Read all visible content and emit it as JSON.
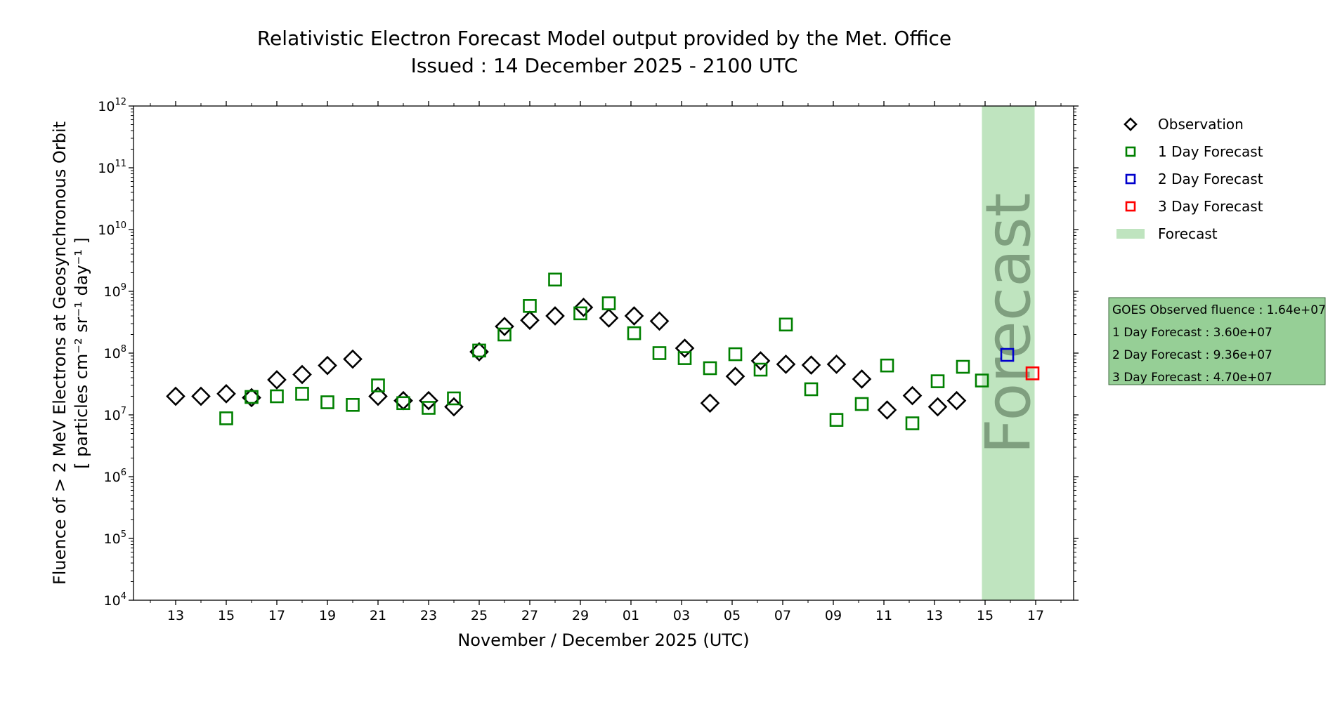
{
  "title": {
    "line1": "Relativistic Electron Forecast Model output provided by the Met. Office",
    "line2": "Issued : 14 December 2025 - 2100 UTC"
  },
  "axes": {
    "xlabel": "November / December 2025 (UTC)",
    "ylabel_line1": "Fluence of > 2 MeV Electrons at Geosynchronous Orbit",
    "ylabel_line2": "[ particles cm⁻² sr⁻¹ day⁻¹ ]",
    "band_label": "Forecast"
  },
  "legend": {
    "observation": "Observation",
    "forecast_1day": "1 Day Forecast",
    "forecast_2day": "2 Day Forecast",
    "forecast_3day": "3 Day Forecast",
    "forecast_band": "Forecast"
  },
  "info_box": {
    "observed": "GOES Observed fluence : 1.64e+07",
    "day1": "1 Day Forecast : 3.60e+07",
    "day2": "2 Day Forecast : 9.36e+07",
    "day3": "3 Day Forecast : 4.70e+07"
  },
  "colors": {
    "observation": "#000000",
    "forecast_1day": "#008000",
    "forecast_2day": "#0000cc",
    "forecast_3day": "#ff0000",
    "forecast_band": "#bfe4bf",
    "band_text": "#7f9f7f",
    "info_box_fill": "#96cf96"
  },
  "chart_data": {
    "type": "scatter",
    "title": "Relativistic Electron Forecast Model output provided by the Met. Office",
    "subtitle": "Issued : 14 December 2025 - 2100 UTC",
    "xlabel": "November / December 2025 (UTC)",
    "ylabel": "Fluence of > 2 MeV Electrons at Geosynchronous Orbit [ particles cm⁻² sr⁻¹ day⁻¹ ]",
    "yscale": "log",
    "xlim": [
      "2025-11-11T08:00",
      "2025-12-18T12:00"
    ],
    "ylim": [
      10000,
      1000000000000
    ],
    "x_ticks": [
      "13",
      "15",
      "17",
      "19",
      "21",
      "23",
      "25",
      "27",
      "29",
      "01",
      "03",
      "05",
      "07",
      "09",
      "11",
      "13",
      "15",
      "17"
    ],
    "x_tick_dates": [
      "2025-11-13",
      "2025-11-15",
      "2025-11-17",
      "2025-11-19",
      "2025-11-21",
      "2025-11-23",
      "2025-11-25",
      "2025-11-27",
      "2025-11-29",
      "2025-12-01",
      "2025-12-03",
      "2025-12-05",
      "2025-12-07",
      "2025-12-09",
      "2025-12-11",
      "2025-12-13",
      "2025-12-15",
      "2025-12-17"
    ],
    "y_tick_exponents": [
      4,
      5,
      6,
      7,
      8,
      9,
      10,
      11,
      12
    ],
    "grid": false,
    "legend_position": "right, outside plot",
    "forecast_band": [
      "2025-12-14T21:00",
      "2025-12-16T23:00"
    ],
    "series": [
      {
        "name": "Observation",
        "marker": "diamond",
        "color": "#000000",
        "points": [
          [
            "2025-11-13",
            20000000.0
          ],
          [
            "2025-11-14",
            20000000.0
          ],
          [
            "2025-11-15",
            22000000.0
          ],
          [
            "2025-11-16",
            19000000.0
          ],
          [
            "2025-11-17",
            37000000.0
          ],
          [
            "2025-11-18",
            45000000.0
          ],
          [
            "2025-11-19",
            63000000.0
          ],
          [
            "2025-11-20",
            80000000.0
          ],
          [
            "2025-11-21",
            20000000.0
          ],
          [
            "2025-11-22",
            17000000.0
          ],
          [
            "2025-11-23",
            17000000.0
          ],
          [
            "2025-11-24",
            13500000.0
          ],
          [
            "2025-11-25",
            105000000.0
          ],
          [
            "2025-11-26",
            270000000.0
          ],
          [
            "2025-11-27",
            340000000.0
          ],
          [
            "2025-11-28",
            400000000.0
          ],
          [
            "2025-11-29T03:00",
            550000000.0
          ],
          [
            "2025-11-30T03:00",
            370000000.0
          ],
          [
            "2025-12-01T03:00",
            400000000.0
          ],
          [
            "2025-12-02T03:00",
            330000000.0
          ],
          [
            "2025-12-03T03:00",
            120000000.0
          ],
          [
            "2025-12-04T03:00",
            15500000.0
          ],
          [
            "2025-12-05T03:00",
            42000000.0
          ],
          [
            "2025-12-06T03:00",
            75000000.0
          ],
          [
            "2025-12-07T03:00",
            66000000.0
          ],
          [
            "2025-12-08T03:00",
            64000000.0
          ],
          [
            "2025-12-09T03:00",
            66000000.0
          ],
          [
            "2025-12-10T03:00",
            38000000.0
          ],
          [
            "2025-12-11T03:00",
            12000000.0
          ],
          [
            "2025-12-12T03:00",
            20500000.0
          ],
          [
            "2025-12-13T03:00",
            13500000.0
          ],
          [
            "2025-12-13T21:00",
            17000000.0
          ]
        ]
      },
      {
        "name": "1 Day Forecast",
        "marker": "square",
        "color": "#008000",
        "points": [
          [
            "2025-11-15",
            8800000.0
          ],
          [
            "2025-11-16",
            19500000.0
          ],
          [
            "2025-11-17",
            20000000.0
          ],
          [
            "2025-11-18",
            22000000.0
          ],
          [
            "2025-11-19",
            16000000.0
          ],
          [
            "2025-11-20",
            14500000.0
          ],
          [
            "2025-11-21",
            30000000.0
          ],
          [
            "2025-11-22",
            15500000.0
          ],
          [
            "2025-11-23",
            13000000.0
          ],
          [
            "2025-11-24",
            18500000.0
          ],
          [
            "2025-11-25",
            110000000.0
          ],
          [
            "2025-11-26",
            200000000.0
          ],
          [
            "2025-11-27",
            580000000.0
          ],
          [
            "2025-11-28",
            1550000000.0
          ],
          [
            "2025-11-29",
            440000000.0
          ],
          [
            "2025-11-30T03:00",
            640000000.0
          ],
          [
            "2025-12-01T03:00",
            210000000.0
          ],
          [
            "2025-12-02T03:00",
            100000000.0
          ],
          [
            "2025-12-03T03:00",
            83000000.0
          ],
          [
            "2025-12-04T03:00",
            57000000.0
          ],
          [
            "2025-12-05T03:00",
            96000000.0
          ],
          [
            "2025-12-06T03:00",
            54000000.0
          ],
          [
            "2025-12-07T03:00",
            290000000.0
          ],
          [
            "2025-12-08T03:00",
            26000000.0
          ],
          [
            "2025-12-09T03:00",
            8300000.0
          ],
          [
            "2025-12-10T03:00",
            15000000.0
          ],
          [
            "2025-12-11T03:00",
            63000000.0
          ],
          [
            "2025-12-12T03:00",
            7300000.0
          ],
          [
            "2025-12-13T03:00",
            35000000.0
          ],
          [
            "2025-12-14T03:00",
            60000000.0
          ],
          [
            "2025-12-14T21:00",
            36000000.0
          ]
        ]
      },
      {
        "name": "2 Day Forecast",
        "marker": "square",
        "color": "#0000cc",
        "points": [
          [
            "2025-12-15T21:00",
            93600000.0
          ]
        ]
      },
      {
        "name": "3 Day Forecast",
        "marker": "square",
        "color": "#ff0000",
        "points": [
          [
            "2025-12-16T21:00",
            47000000.0
          ]
        ]
      }
    ]
  }
}
